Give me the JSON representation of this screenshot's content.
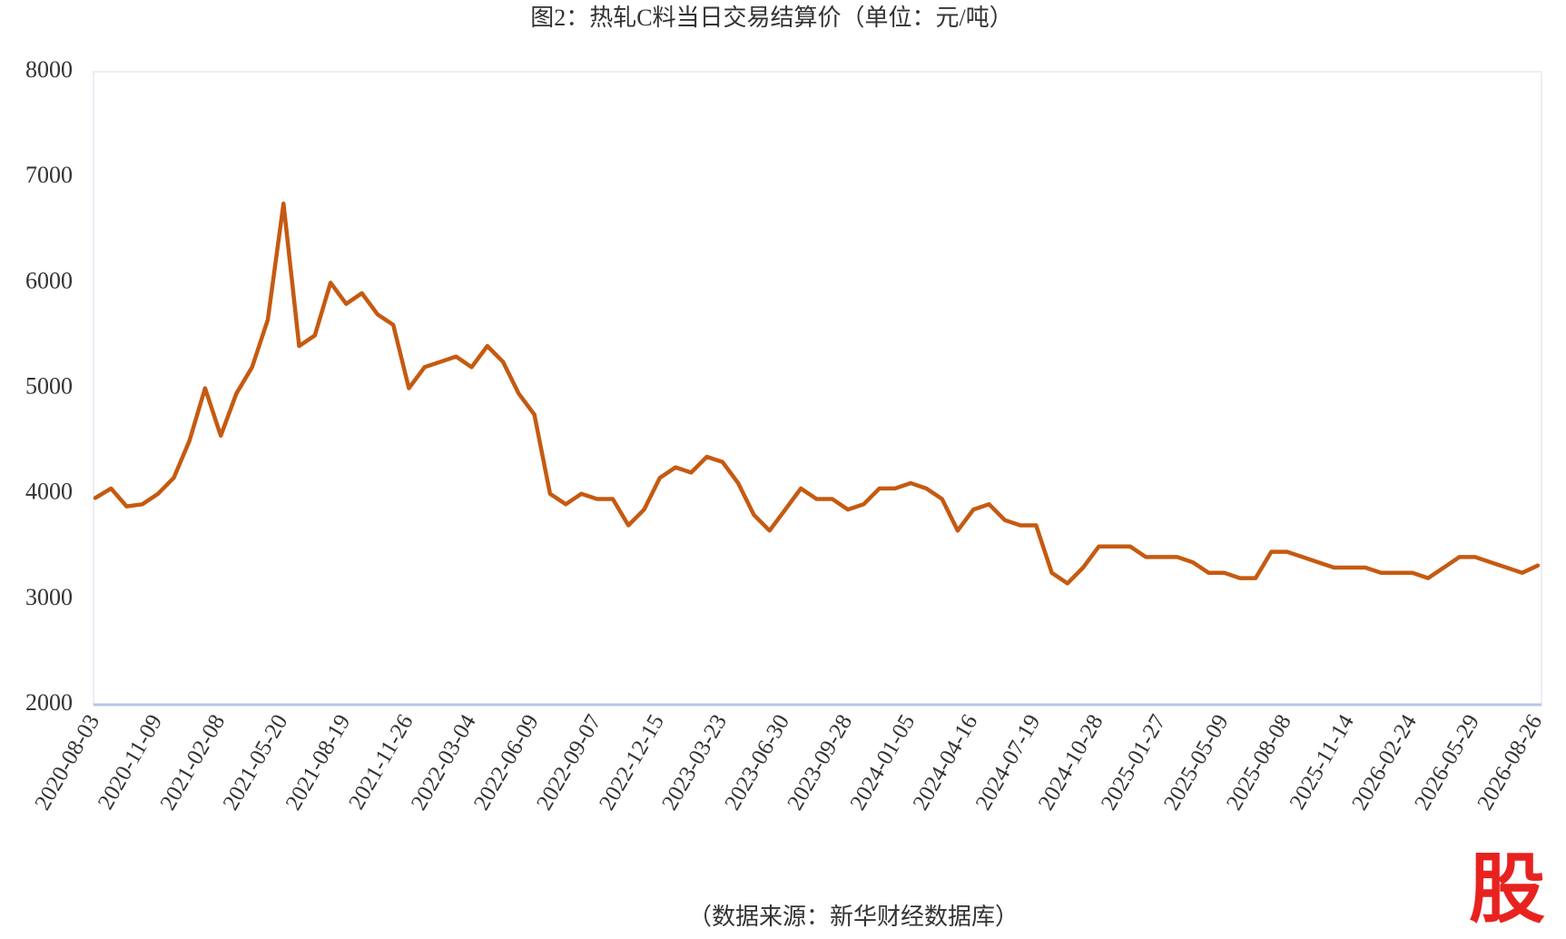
{
  "chart_data": {
    "type": "line",
    "title": "图2：热轧C料当日交易结算价（单位：元/吨）",
    "source": "（数据来源：新华财经数据库）",
    "categories": [
      "2020-08-03",
      null,
      null,
      null,
      "2020-11-09",
      null,
      null,
      null,
      "2021-02-08",
      null,
      null,
      null,
      "2021-05-20",
      null,
      null,
      null,
      "2021-08-19",
      null,
      null,
      null,
      "2021-11-26",
      null,
      null,
      null,
      "2022-03-04",
      null,
      null,
      null,
      "2022-06-09",
      null,
      null,
      null,
      "2022-09-07",
      null,
      null,
      null,
      "2022-12-15",
      null,
      null,
      null,
      "2023-03-23",
      null,
      null,
      null,
      "2023-06-30",
      null,
      null,
      null,
      "2023-09-28",
      null,
      null,
      null,
      "2024-01-05",
      null,
      null,
      null,
      "2024-04-16",
      null,
      null,
      null,
      "2024-07-19",
      null,
      null,
      null,
      "2024-10-28",
      null,
      null,
      null,
      "2025-01-27",
      null,
      null,
      null,
      "2025-05-09",
      null,
      null,
      null,
      "2025-08-08",
      null,
      null,
      null,
      "2025-11-14",
      null,
      null,
      null,
      "2026-02-24",
      null,
      null,
      null,
      "2026-05-29",
      null,
      null,
      null,
      "2026-08-26"
    ],
    "series": [
      {
        "name": "热轧C料当日交易结算价",
        "color": "#c55a11",
        "values": [
          3960,
          4050,
          3880,
          3900,
          4000,
          4150,
          4500,
          5000,
          4550,
          4950,
          5200,
          5650,
          6750,
          5400,
          5500,
          6000,
          5800,
          5900,
          5700,
          5600,
          5000,
          5200,
          5250,
          5300,
          5200,
          5400,
          5250,
          4950,
          4750,
          4000,
          3900,
          4000,
          3950,
          3950,
          3700,
          3850,
          4150,
          4250,
          4200,
          4350,
          4300,
          4100,
          3800,
          3650,
          3850,
          4050,
          3950,
          3950,
          3850,
          3900,
          4050,
          4050,
          4100,
          4050,
          3950,
          3650,
          3850,
          3900,
          3750,
          3700,
          3700,
          3250,
          3150,
          3300,
          3500,
          3500,
          3500,
          3400,
          3400,
          3400,
          3350,
          3250,
          3250,
          3200,
          3200,
          3450,
          3450,
          3400,
          3350,
          3300,
          3300,
          3300,
          3250,
          3250,
          3250,
          3200,
          3300,
          3400,
          3400,
          3350,
          3300,
          3250,
          3320
        ]
      }
    ],
    "ylim": [
      2000,
      8000
    ],
    "yticks": [
      2000,
      3000,
      4000,
      5000,
      6000,
      7000,
      8000
    ],
    "grid": false
  },
  "watermark": "股"
}
